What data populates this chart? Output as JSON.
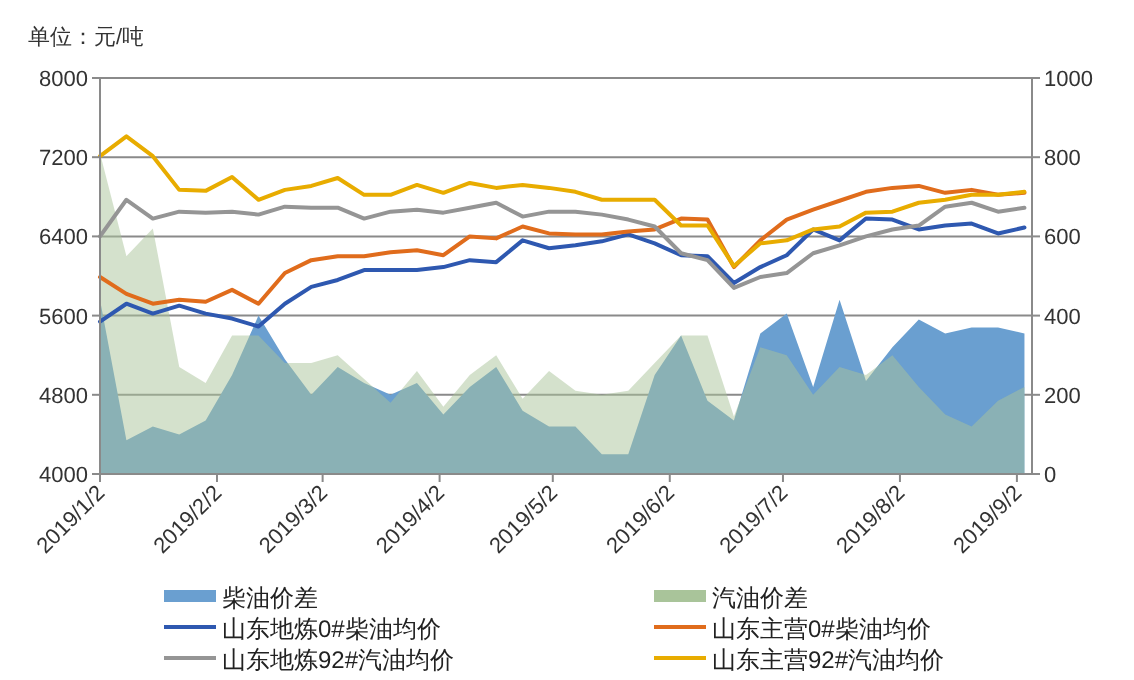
{
  "chart_data": {
    "type": "line",
    "ylabel": "单位：元/吨",
    "x": [
      "2019-01-02",
      "2019-01-09",
      "2019-01-16",
      "2019-01-23",
      "2019-01-30",
      "2019-02-06",
      "2019-02-13",
      "2019-02-20",
      "2019-02-27",
      "2019-03-06",
      "2019-03-13",
      "2019-03-20",
      "2019-03-27",
      "2019-04-03",
      "2019-04-10",
      "2019-04-17",
      "2019-04-24",
      "2019-05-01",
      "2019-05-08",
      "2019-05-15",
      "2019-05-22",
      "2019-05-29",
      "2019-06-05",
      "2019-06-12",
      "2019-06-19",
      "2019-06-26",
      "2019-07-03",
      "2019-07-10",
      "2019-07-17",
      "2019-07-24",
      "2019-07-31",
      "2019-08-07",
      "2019-08-14",
      "2019-08-21",
      "2019-08-28",
      "2019-09-04"
    ],
    "series": [
      {
        "name": "柴油价差",
        "type": "area",
        "axis": "y2",
        "color": "#6a9fd0",
        "values": [
          440,
          85,
          120,
          100,
          135,
          250,
          400,
          290,
          200,
          270,
          230,
          200,
          230,
          150,
          220,
          270,
          160,
          120,
          120,
          50,
          50,
          250,
          350,
          185,
          135,
          355,
          405,
          220,
          440,
          235,
          320,
          390,
          355,
          370,
          370,
          355
        ]
      },
      {
        "name": "汽油价差",
        "type": "area",
        "axis": "y2",
        "color": "#a9c49a",
        "values": [
          810,
          550,
          620,
          270,
          230,
          350,
          350,
          280,
          280,
          300,
          240,
          180,
          260,
          170,
          250,
          300,
          190,
          260,
          210,
          200,
          210,
          280,
          350,
          350,
          145,
          320,
          300,
          200,
          270,
          250,
          300,
          220,
          150,
          120,
          185,
          220
        ]
      },
      {
        "name": "山东地炼0#柴油均价",
        "type": "line",
        "color": "#2e58b0",
        "values": [
          5540,
          5720,
          5620,
          5700,
          5620,
          5570,
          5490,
          5720,
          5890,
          5960,
          6060,
          6060,
          6060,
          6090,
          6160,
          6140,
          6360,
          6280,
          6310,
          6350,
          6420,
          6330,
          6210,
          6200,
          5930,
          6090,
          6210,
          6470,
          6360,
          6580,
          6570,
          6470,
          6510,
          6530,
          6430,
          6490
        ]
      },
      {
        "name": "山东主营0#柴油均价",
        "type": "line",
        "color": "#e06c1c",
        "values": [
          5990,
          5820,
          5720,
          5760,
          5740,
          5860,
          5720,
          6030,
          6160,
          6200,
          6200,
          6240,
          6260,
          6210,
          6400,
          6380,
          6500,
          6430,
          6420,
          6420,
          6450,
          6470,
          6580,
          6570,
          6090,
          6360,
          6570,
          6670,
          6760,
          6850,
          6890,
          6910,
          6840,
          6870,
          6820,
          6840
        ]
      },
      {
        "name": "山东地炼92#汽油均价",
        "type": "line",
        "color": "#959595",
        "values": [
          6400,
          6770,
          6580,
          6650,
          6640,
          6650,
          6620,
          6700,
          6690,
          6690,
          6580,
          6650,
          6670,
          6640,
          6690,
          6740,
          6600,
          6650,
          6650,
          6620,
          6570,
          6500,
          6230,
          6160,
          5880,
          5990,
          6030,
          6230,
          6310,
          6400,
          6470,
          6510,
          6700,
          6740,
          6650,
          6690
        ]
      },
      {
        "name": "山东主营92#汽油均价",
        "type": "line",
        "color": "#e8ac00",
        "values": [
          7210,
          7410,
          7210,
          6870,
          6860,
          7000,
          6770,
          6870,
          6910,
          6990,
          6820,
          6820,
          6920,
          6840,
          6940,
          6890,
          6920,
          6890,
          6850,
          6770,
          6770,
          6770,
          6510,
          6510,
          6100,
          6330,
          6360,
          6470,
          6500,
          6640,
          6650,
          6740,
          6770,
          6820,
          6820,
          6850
        ]
      }
    ],
    "xlim": [
      "2019-01-02",
      "2019-09-06"
    ],
    "xticks": [
      {
        "value": "2019-01-02",
        "label": "2019/1/2"
      },
      {
        "value": "2019-02-02",
        "label": "2019/2/2"
      },
      {
        "value": "2019-03-02",
        "label": "2019/3/2"
      },
      {
        "value": "2019-04-02",
        "label": "2019/4/2"
      },
      {
        "value": "2019-05-02",
        "label": "2019/5/2"
      },
      {
        "value": "2019-06-02",
        "label": "2019/6/2"
      },
      {
        "value": "2019-07-02",
        "label": "2019/7/2"
      },
      {
        "value": "2019-08-02",
        "label": "2019/8/2"
      },
      {
        "value": "2019-09-02",
        "label": "2019/9/2"
      }
    ],
    "ylim": [
      4000,
      8000
    ],
    "yticks": [
      4000,
      4800,
      5600,
      6400,
      7200,
      8000
    ],
    "y2lim": [
      0,
      1000
    ],
    "y2ticks": [
      0,
      200,
      400,
      600,
      800,
      1000
    ],
    "grid": "y",
    "legend": "bottom",
    "marker": "none",
    "line_style": "solid"
  }
}
